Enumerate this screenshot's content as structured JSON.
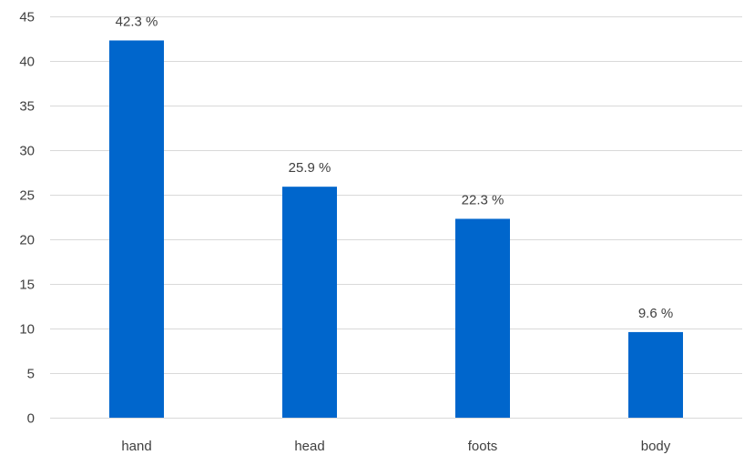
{
  "chart_data": {
    "type": "bar",
    "categories": [
      "hand",
      "head",
      "foots",
      "body"
    ],
    "values": [
      42.3,
      25.9,
      22.3,
      9.6
    ],
    "data_labels": [
      "42.3 %",
      "25.9 %",
      "22.3 %",
      "9.6 %"
    ],
    "title": "",
    "xlabel": "",
    "ylabel": "",
    "ylim": [
      0,
      45
    ],
    "yticks": [
      0,
      5,
      10,
      15,
      20,
      25,
      30,
      35,
      40,
      45
    ],
    "grid": true,
    "legend": "none",
    "bar_color": "#0066cc"
  }
}
